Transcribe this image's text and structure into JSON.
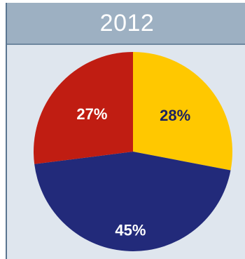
{
  "chart_data": {
    "type": "pie",
    "title": "2012",
    "slices": [
      {
        "label": "28%",
        "value": 28,
        "color": "#ffc800"
      },
      {
        "label": "45%",
        "value": 45,
        "color": "#222a7a"
      },
      {
        "label": "27%",
        "value": 27,
        "color": "#c01d12"
      }
    ],
    "start_angle_deg": 0,
    "direction": "clockwise",
    "label_colors": {
      "on_light": "#1a2260",
      "on_dark": "#ffffff"
    }
  }
}
